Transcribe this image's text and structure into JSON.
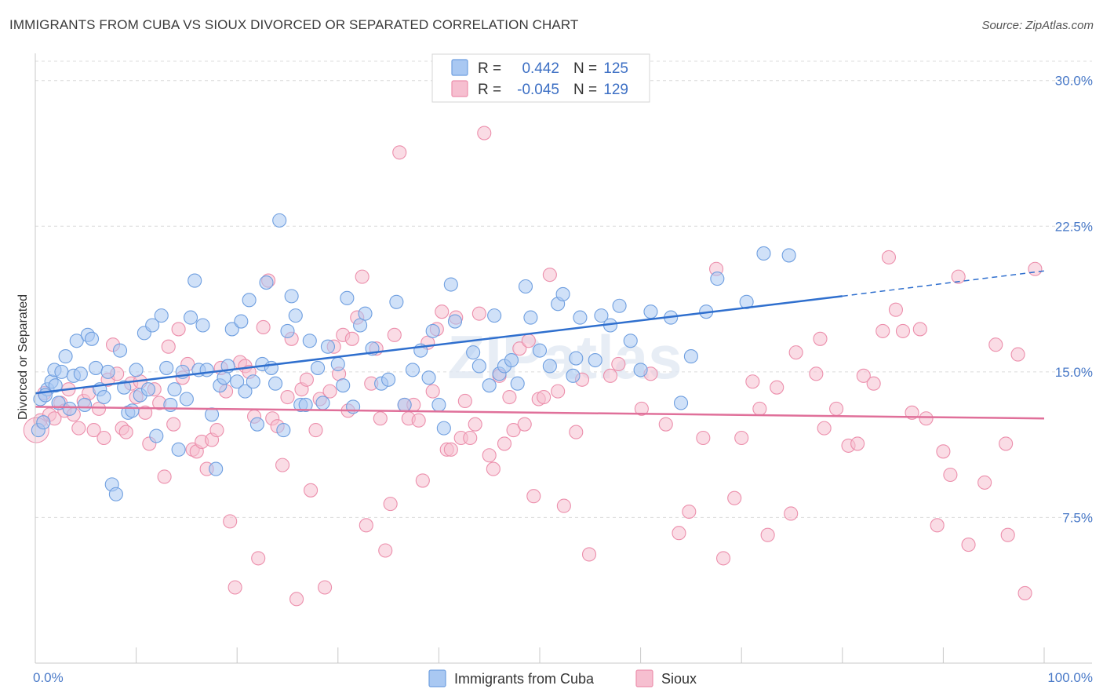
{
  "title": "IMMIGRANTS FROM CUBA VS SIOUX DIVORCED OR SEPARATED CORRELATION CHART",
  "source": "Source: ZipAtlas.com",
  "colors": {
    "blue_fill": "#a9c8f2",
    "blue_stroke": "#6f9fe0",
    "blue_line": "#2f6fce",
    "pink_fill": "#f6bfd0",
    "pink_stroke": "#ec8fac",
    "pink_line": "#e0709a",
    "tick_text": "#4a7ac8"
  },
  "legend": {
    "rows": [
      {
        "r_label": "R =",
        "r_value": "0.442",
        "n_label": "N =",
        "n_value": "125",
        "color": "blue"
      },
      {
        "r_label": "R =",
        "r_value": "-0.045",
        "n_label": "N =",
        "n_value": "129",
        "color": "pink"
      }
    ]
  },
  "bottom_legend": [
    {
      "label": "Immigrants from Cuba",
      "color": "blue"
    },
    {
      "label": "Sioux",
      "color": "pink"
    }
  ],
  "watermark": "ZIPatlas",
  "chart_data": {
    "type": "scatter",
    "title": "IMMIGRANTS FROM CUBA VS SIOUX DIVORCED OR SEPARATED CORRELATION CHART",
    "xlabel": "",
    "ylabel": "Divorced or Separated",
    "xlim": [
      0,
      100
    ],
    "ylim": [
      0,
      31
    ],
    "x_tick_labels": [
      "0.0%",
      "100.0%"
    ],
    "y_ticks": [
      7.5,
      15.0,
      22.5,
      30.0
    ],
    "y_tick_labels": [
      "7.5%",
      "15.0%",
      "22.5%",
      "30.0%"
    ],
    "grid": true,
    "legend_position": "top-center",
    "series": [
      {
        "name": "Immigrants from Cuba",
        "trend": {
          "x0": 0,
          "y0": 13.9,
          "x1": 80,
          "y1": 18.9,
          "dashed_to_x": 100,
          "dashed_to_y": 20.2
        },
        "points": [
          [
            0.3,
            12.0
          ],
          [
            0.5,
            13.6
          ],
          [
            0.8,
            12.4
          ],
          [
            1.2,
            14.1
          ],
          [
            1.6,
            14.5
          ],
          [
            1.9,
            15.1
          ],
          [
            2.3,
            13.4
          ],
          [
            2.6,
            15.0
          ],
          [
            3.0,
            15.8
          ],
          [
            3.4,
            13.1
          ],
          [
            3.8,
            14.8
          ],
          [
            4.1,
            16.6
          ],
          [
            4.5,
            14.9
          ],
          [
            4.9,
            13.3
          ],
          [
            5.2,
            16.9
          ],
          [
            5.6,
            16.7
          ],
          [
            6.0,
            15.2
          ],
          [
            6.4,
            14.1
          ],
          [
            6.8,
            13.7
          ],
          [
            7.2,
            15.0
          ],
          [
            7.6,
            9.2
          ],
          [
            8.0,
            8.7
          ],
          [
            8.4,
            16.1
          ],
          [
            8.8,
            14.2
          ],
          [
            9.2,
            12.9
          ],
          [
            9.6,
            13.0
          ],
          [
            10.0,
            15.1
          ],
          [
            10.4,
            13.8
          ],
          [
            10.8,
            17.0
          ],
          [
            11.2,
            14.1
          ],
          [
            11.6,
            17.4
          ],
          [
            12.0,
            11.7
          ],
          [
            12.5,
            17.9
          ],
          [
            13.0,
            15.2
          ],
          [
            13.4,
            13.3
          ],
          [
            13.8,
            14.1
          ],
          [
            14.2,
            11.0
          ],
          [
            14.6,
            15.0
          ],
          [
            15.0,
            13.6
          ],
          [
            15.4,
            17.8
          ],
          [
            15.8,
            19.7
          ],
          [
            16.2,
            15.1
          ],
          [
            16.6,
            17.4
          ],
          [
            17.0,
            15.1
          ],
          [
            17.5,
            12.8
          ],
          [
            17.9,
            10.0
          ],
          [
            18.3,
            14.3
          ],
          [
            18.7,
            14.7
          ],
          [
            19.1,
            15.3
          ],
          [
            19.5,
            17.2
          ],
          [
            20.0,
            14.5
          ],
          [
            20.4,
            17.6
          ],
          [
            20.8,
            14.0
          ],
          [
            21.2,
            18.7
          ],
          [
            21.6,
            14.5
          ],
          [
            22.0,
            12.3
          ],
          [
            22.5,
            15.4
          ],
          [
            22.9,
            19.6
          ],
          [
            23.4,
            15.2
          ],
          [
            23.8,
            14.4
          ],
          [
            24.2,
            22.8
          ],
          [
            24.6,
            12.0
          ],
          [
            25.0,
            17.1
          ],
          [
            25.4,
            18.9
          ],
          [
            25.8,
            17.9
          ],
          [
            26.3,
            13.3
          ],
          [
            26.8,
            13.3
          ],
          [
            27.2,
            16.6
          ],
          [
            28.0,
            15.2
          ],
          [
            28.5,
            13.4
          ],
          [
            29.0,
            16.3
          ],
          [
            30.0,
            15.4
          ],
          [
            30.5,
            14.3
          ],
          [
            30.9,
            18.8
          ],
          [
            31.5,
            13.2
          ],
          [
            32.2,
            17.4
          ],
          [
            32.7,
            18.0
          ],
          [
            33.4,
            16.2
          ],
          [
            34.3,
            14.4
          ],
          [
            35.0,
            14.6
          ],
          [
            35.8,
            18.6
          ],
          [
            36.6,
            13.3
          ],
          [
            37.4,
            15.1
          ],
          [
            38.2,
            16.1
          ],
          [
            39.0,
            14.7
          ],
          [
            39.4,
            17.1
          ],
          [
            40.0,
            13.3
          ],
          [
            40.5,
            12.1
          ],
          [
            41.2,
            19.5
          ],
          [
            41.6,
            17.6
          ],
          [
            43.4,
            16.0
          ],
          [
            44.0,
            15.3
          ],
          [
            45.0,
            14.3
          ],
          [
            45.5,
            17.9
          ],
          [
            46.0,
            14.9
          ],
          [
            46.5,
            15.3
          ],
          [
            47.2,
            15.6
          ],
          [
            47.8,
            14.4
          ],
          [
            48.6,
            19.4
          ],
          [
            49.1,
            17.8
          ],
          [
            50.0,
            16.1
          ],
          [
            51.0,
            15.3
          ],
          [
            51.8,
            18.5
          ],
          [
            52.3,
            19.0
          ],
          [
            53.3,
            14.8
          ],
          [
            53.6,
            15.7
          ],
          [
            54.0,
            17.8
          ],
          [
            55.5,
            15.6
          ],
          [
            56.1,
            17.9
          ],
          [
            57.0,
            17.4
          ],
          [
            57.9,
            18.4
          ],
          [
            59.0,
            16.6
          ],
          [
            60.0,
            15.1
          ],
          [
            61.0,
            18.1
          ],
          [
            63.0,
            17.8
          ],
          [
            64.0,
            13.4
          ],
          [
            65.0,
            15.8
          ],
          [
            66.5,
            18.1
          ],
          [
            67.6,
            19.8
          ],
          [
            70.5,
            18.6
          ],
          [
            72.2,
            21.1
          ],
          [
            74.7,
            21.0
          ],
          [
            1.0,
            13.8
          ],
          [
            2.0,
            14.3
          ]
        ]
      },
      {
        "name": "Sioux",
        "trend": {
          "x0": 0,
          "y0": 13.2,
          "x1": 100,
          "y1": 12.6
        },
        "points": [
          [
            0.5,
            12.5
          ],
          [
            0.9,
            13.9
          ],
          [
            1.4,
            12.8
          ],
          [
            1.9,
            12.6
          ],
          [
            2.5,
            13.4
          ],
          [
            2.9,
            13.0
          ],
          [
            3.3,
            14.1
          ],
          [
            3.8,
            12.8
          ],
          [
            4.3,
            12.1
          ],
          [
            4.8,
            13.5
          ],
          [
            5.3,
            13.9
          ],
          [
            5.8,
            12.0
          ],
          [
            6.3,
            13.1
          ],
          [
            6.8,
            11.6
          ],
          [
            7.2,
            14.6
          ],
          [
            7.7,
            16.4
          ],
          [
            8.1,
            14.9
          ],
          [
            8.6,
            12.1
          ],
          [
            9.0,
            11.9
          ],
          [
            9.5,
            14.4
          ],
          [
            10.0,
            13.7
          ],
          [
            10.4,
            14.5
          ],
          [
            10.9,
            12.9
          ],
          [
            11.3,
            11.3
          ],
          [
            11.8,
            14.1
          ],
          [
            12.3,
            13.4
          ],
          [
            12.8,
            9.6
          ],
          [
            13.2,
            16.3
          ],
          [
            13.7,
            12.3
          ],
          [
            14.2,
            17.2
          ],
          [
            14.6,
            14.7
          ],
          [
            15.1,
            15.4
          ],
          [
            15.6,
            11.0
          ],
          [
            16.0,
            10.9
          ],
          [
            16.5,
            11.4
          ],
          [
            17.0,
            10.0
          ],
          [
            17.5,
            11.5
          ],
          [
            18.0,
            12.0
          ],
          [
            18.4,
            15.2
          ],
          [
            18.9,
            14.0
          ],
          [
            19.3,
            7.3
          ],
          [
            19.8,
            3.9
          ],
          [
            20.3,
            15.5
          ],
          [
            20.8,
            15.3
          ],
          [
            21.2,
            15.0
          ],
          [
            21.7,
            12.7
          ],
          [
            22.1,
            5.4
          ],
          [
            22.6,
            17.3
          ],
          [
            23.1,
            19.7
          ],
          [
            23.5,
            12.6
          ],
          [
            24.0,
            12.2
          ],
          [
            24.5,
            10.2
          ],
          [
            25.0,
            13.7
          ],
          [
            25.4,
            16.7
          ],
          [
            25.9,
            3.3
          ],
          [
            26.4,
            14.1
          ],
          [
            26.9,
            14.6
          ],
          [
            27.3,
            8.9
          ],
          [
            27.8,
            12.0
          ],
          [
            28.2,
            13.6
          ],
          [
            28.7,
            3.9
          ],
          [
            29.2,
            14.0
          ],
          [
            29.6,
            16.3
          ],
          [
            30.1,
            14.9
          ],
          [
            30.5,
            16.9
          ],
          [
            31.0,
            13.0
          ],
          [
            31.4,
            16.7
          ],
          [
            31.9,
            17.8
          ],
          [
            32.4,
            19.9
          ],
          [
            32.8,
            7.1
          ],
          [
            33.3,
            14.4
          ],
          [
            33.8,
            16.2
          ],
          [
            34.2,
            12.6
          ],
          [
            34.7,
            5.8
          ],
          [
            35.2,
            8.2
          ],
          [
            35.6,
            16.9
          ],
          [
            36.1,
            26.3
          ],
          [
            36.6,
            13.3
          ],
          [
            37.0,
            12.6
          ],
          [
            37.5,
            13.3
          ],
          [
            38.0,
            12.5
          ],
          [
            38.4,
            9.4
          ],
          [
            38.9,
            16.5
          ],
          [
            39.4,
            14.0
          ],
          [
            39.8,
            17.2
          ],
          [
            40.3,
            18.1
          ],
          [
            40.8,
            11.0
          ],
          [
            41.2,
            11.0
          ],
          [
            41.7,
            17.8
          ],
          [
            42.2,
            11.6
          ],
          [
            42.6,
            13.5
          ],
          [
            43.1,
            11.6
          ],
          [
            43.6,
            12.3
          ],
          [
            44.0,
            18.0
          ],
          [
            44.5,
            27.3
          ],
          [
            45.0,
            10.7
          ],
          [
            45.4,
            10.0
          ],
          [
            46.0,
            14.8
          ],
          [
            46.5,
            11.3
          ],
          [
            47.0,
            13.7
          ],
          [
            47.4,
            12.0
          ],
          [
            48.0,
            16.2
          ],
          [
            48.5,
            12.3
          ],
          [
            48.9,
            16.6
          ],
          [
            49.4,
            8.6
          ],
          [
            49.9,
            13.6
          ],
          [
            50.4,
            13.7
          ],
          [
            51.0,
            20.0
          ],
          [
            51.8,
            14.0
          ],
          [
            52.4,
            8.1
          ],
          [
            53.6,
            11.9
          ],
          [
            54.2,
            14.6
          ],
          [
            54.9,
            5.6
          ],
          [
            57.0,
            14.8
          ],
          [
            57.8,
            15.4
          ],
          [
            60.1,
            13.1
          ],
          [
            61.0,
            14.9
          ],
          [
            62.5,
            12.3
          ],
          [
            63.8,
            6.7
          ],
          [
            64.8,
            7.8
          ],
          [
            66.2,
            11.6
          ],
          [
            67.5,
            20.3
          ],
          [
            68.2,
            5.4
          ],
          [
            69.3,
            8.5
          ],
          [
            70.0,
            11.6
          ],
          [
            71.1,
            14.5
          ],
          [
            71.8,
            13.1
          ],
          [
            72.6,
            6.6
          ],
          [
            73.5,
            14.2
          ],
          [
            74.9,
            7.7
          ],
          [
            75.4,
            16.0
          ],
          [
            77.4,
            14.9
          ],
          [
            77.8,
            16.7
          ],
          [
            78.2,
            12.1
          ],
          [
            79.4,
            13.1
          ],
          [
            80.6,
            11.2
          ],
          [
            81.5,
            11.3
          ],
          [
            82.1,
            14.8
          ],
          [
            83.1,
            14.4
          ],
          [
            84.0,
            17.1
          ],
          [
            84.6,
            20.9
          ],
          [
            85.3,
            18.2
          ],
          [
            86.0,
            17.1
          ],
          [
            86.9,
            12.9
          ],
          [
            87.7,
            17.2
          ],
          [
            88.3,
            12.6
          ],
          [
            89.4,
            7.1
          ],
          [
            90.0,
            10.9
          ],
          [
            90.7,
            9.7
          ],
          [
            91.5,
            19.9
          ],
          [
            92.5,
            6.1
          ],
          [
            94.1,
            9.3
          ],
          [
            95.2,
            16.4
          ],
          [
            96.2,
            11.3
          ],
          [
            96.4,
            6.6
          ],
          [
            97.4,
            15.9
          ],
          [
            98.1,
            3.6
          ],
          [
            99.1,
            20.3
          ]
        ]
      }
    ]
  }
}
